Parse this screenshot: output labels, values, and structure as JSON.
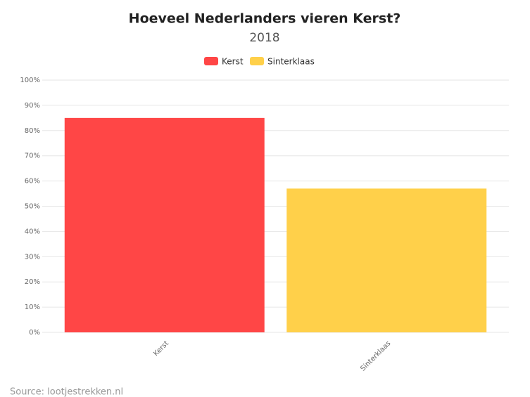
{
  "chart_data": {
    "type": "bar",
    "title": "Hoeveel Nederlanders vieren Kerst?",
    "subtitle": "2018",
    "categories": [
      "Kerst",
      "Sinterklaas"
    ],
    "series": [
      {
        "name": "Kerst",
        "color": "#ff4646",
        "values": [
          85,
          null
        ]
      },
      {
        "name": "Sinterklaas",
        "color": "#ffd04a",
        "values": [
          null,
          57
        ]
      }
    ],
    "ylim": [
      0,
      100
    ],
    "yticks": [
      {
        "value": 0,
        "label": "0%"
      },
      {
        "value": 10,
        "label": "10%"
      },
      {
        "value": 20,
        "label": "20%"
      },
      {
        "value": 30,
        "label": "30%"
      },
      {
        "value": 40,
        "label": "40%"
      },
      {
        "value": 50,
        "label": "50%"
      },
      {
        "value": 60,
        "label": "60%"
      },
      {
        "value": 70,
        "label": "70%"
      },
      {
        "value": 80,
        "label": "80%"
      },
      {
        "value": 90,
        "label": "90%"
      },
      {
        "value": 100,
        "label": "100%"
      }
    ],
    "grid": true,
    "legend": "top",
    "source": "Source: lootjestrekken.nl"
  }
}
